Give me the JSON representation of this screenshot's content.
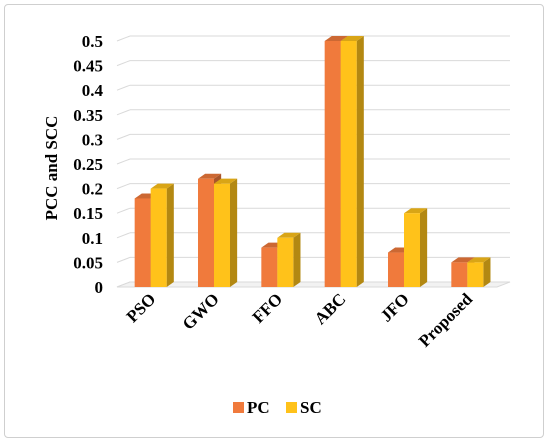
{
  "chart_data": {
    "type": "bar",
    "style": "3d-clustered-column",
    "categories": [
      "PSO",
      "GWO",
      "FFO",
      "ABC",
      "JFO",
      "Proposed"
    ],
    "series": [
      {
        "name": "PC",
        "values": [
          0.18,
          0.22,
          0.08,
          0.5,
          0.07,
          0.05
        ],
        "color": "#f07a3c"
      },
      {
        "name": "SC",
        "values": [
          0.2,
          0.21,
          0.1,
          0.5,
          0.15,
          0.05
        ],
        "color": "#ffc21a"
      }
    ],
    "ylabel": "PCC and SCC",
    "xlabel": "",
    "ylim": [
      0,
      0.5
    ],
    "yticks": [
      "0",
      "0.05",
      "0.1",
      "0.15",
      "0.2",
      "0.25",
      "0.3",
      "0.35",
      "0.4",
      "0.45",
      "0.5"
    ],
    "grid": true,
    "legend": "bottom-center"
  }
}
